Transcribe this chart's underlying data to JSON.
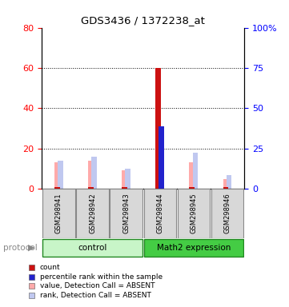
{
  "title": "GDS3436 / 1372238_at",
  "samples": [
    "GSM298941",
    "GSM298942",
    "GSM298943",
    "GSM298944",
    "GSM298945",
    "GSM298946"
  ],
  "group_labels": [
    "control",
    "Math2 expression"
  ],
  "group_light_color": "#c8f5c8",
  "group_dark_color": "#44cc44",
  "group_border_color": "#228822",
  "ylim_left": [
    0,
    80
  ],
  "ylim_right": [
    0,
    100
  ],
  "yticks_left": [
    0,
    20,
    40,
    60,
    80
  ],
  "yticks_right": [
    0,
    25,
    50,
    75,
    100
  ],
  "yticklabels_right": [
    "0",
    "25",
    "50",
    "75",
    "100%"
  ],
  "red_values": [
    1,
    1,
    1,
    60,
    1,
    1
  ],
  "blue_values": [
    0,
    0,
    0,
    31,
    0,
    0
  ],
  "pink_values": [
    13,
    14,
    9,
    0,
    13,
    5
  ],
  "lightblue_values": [
    14,
    16,
    10,
    0,
    18,
    7
  ],
  "red_color": "#cc1111",
  "blue_color": "#2222cc",
  "pink_color": "#ffaaaa",
  "lightblue_color": "#c0c8f0",
  "bg_color": "#d8d8d8",
  "plot_bg": "#ffffff",
  "grid_lines": [
    20,
    40,
    60
  ],
  "legend_items": [
    {
      "color": "#cc1111",
      "label": "count"
    },
    {
      "color": "#2222cc",
      "label": "percentile rank within the sample"
    },
    {
      "color": "#ffaaaa",
      "label": "value, Detection Call = ABSENT"
    },
    {
      "color": "#c0c8f0",
      "label": "rank, Detection Call = ABSENT"
    }
  ]
}
